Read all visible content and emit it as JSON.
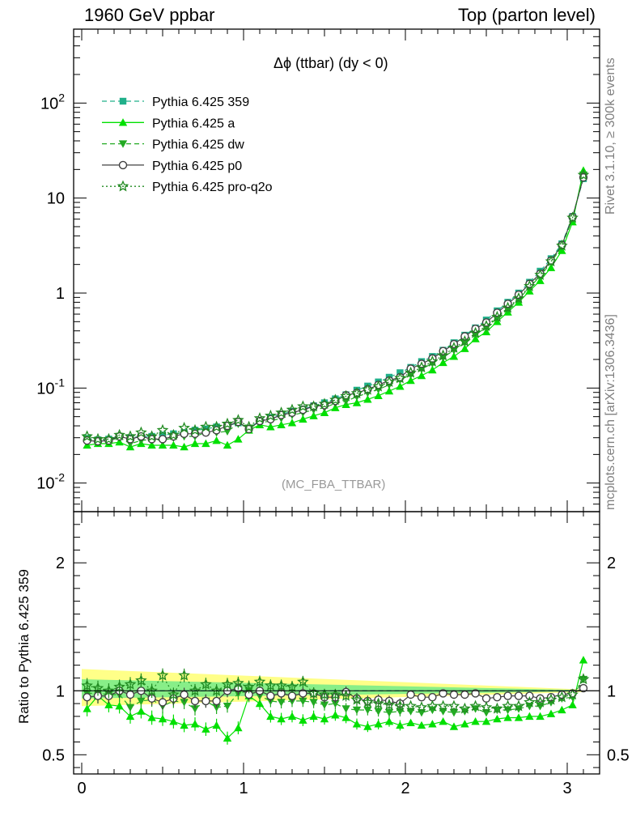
{
  "header": {
    "left": "1960 GeV ppbar",
    "right": "Top (parton level)"
  },
  "side": {
    "top": "Rivet 3.1.10, ≥ 300k events",
    "bottom": "mcplots.cern.ch [arXiv:1306.3436]"
  },
  "chart_data": [
    {
      "type": "line",
      "title": "Δϕ (ttbar) (dy < 0)",
      "annotation": "(MC_FBA_TTBAR)",
      "yscale": "log",
      "xlim": [
        -0.05,
        3.2
      ],
      "ylim": [
        0.005,
        600
      ],
      "y_ticks": [
        {
          "value": 0.01,
          "label": "10^-2"
        },
        {
          "value": 0.1,
          "label": "10^-1"
        },
        {
          "value": 1,
          "label": "1"
        },
        {
          "value": 10,
          "label": "10"
        },
        {
          "value": 100,
          "label": "10^2"
        }
      ],
      "legend_position": "top-left",
      "x": [
        0.033,
        0.1,
        0.167,
        0.233,
        0.3,
        0.367,
        0.433,
        0.5,
        0.567,
        0.633,
        0.7,
        0.767,
        0.833,
        0.9,
        0.967,
        1.033,
        1.1,
        1.167,
        1.233,
        1.3,
        1.367,
        1.433,
        1.5,
        1.567,
        1.633,
        1.7,
        1.767,
        1.833,
        1.9,
        1.967,
        2.033,
        2.1,
        2.167,
        2.233,
        2.3,
        2.367,
        2.433,
        2.5,
        2.567,
        2.633,
        2.7,
        2.767,
        2.833,
        2.9,
        2.967,
        3.033,
        3.1
      ],
      "series": [
        {
          "name": "Pythia 6.425 359",
          "color": "#20b08a",
          "dash": "6,4",
          "marker": "square",
          "values": [
            0.0295,
            0.0285,
            0.029,
            0.031,
            0.03,
            0.031,
            0.031,
            0.032,
            0.033,
            0.034,
            0.036,
            0.037,
            0.039,
            0.04,
            0.043,
            0.038,
            0.045,
            0.049,
            0.053,
            0.057,
            0.06,
            0.065,
            0.07,
            0.077,
            0.085,
            0.095,
            0.105,
            0.116,
            0.13,
            0.145,
            0.165,
            0.19,
            0.215,
            0.25,
            0.3,
            0.36,
            0.43,
            0.52,
            0.65,
            0.8,
            1.0,
            1.3,
            1.7,
            2.3,
            3.3,
            6.4,
            16.0
          ]
        },
        {
          "name": "Pythia 6.425 a",
          "color": "#00e000",
          "dash": "",
          "marker": "triangle-up",
          "values": [
            0.025,
            0.026,
            0.026,
            0.027,
            0.024,
            0.026,
            0.025,
            0.025,
            0.025,
            0.024,
            0.026,
            0.026,
            0.028,
            0.025,
            0.029,
            0.036,
            0.041,
            0.039,
            0.041,
            0.043,
            0.047,
            0.051,
            0.055,
            0.062,
            0.067,
            0.07,
            0.076,
            0.083,
            0.093,
            0.104,
            0.12,
            0.135,
            0.155,
            0.185,
            0.215,
            0.26,
            0.33,
            0.39,
            0.5,
            0.63,
            0.8,
            1.05,
            1.35,
            1.85,
            2.8,
            5.6,
            19.5
          ]
        },
        {
          "name": "Pythia 6.425 dw",
          "color": "#22aa22",
          "dash": "6,4",
          "marker": "triangle-down",
          "values": [
            0.029,
            0.028,
            0.028,
            0.03,
            0.026,
            0.028,
            0.029,
            0.028,
            0.03,
            0.031,
            0.031,
            0.034,
            0.034,
            0.035,
            0.042,
            0.038,
            0.043,
            0.045,
            0.048,
            0.052,
            0.055,
            0.059,
            0.062,
            0.069,
            0.073,
            0.081,
            0.089,
            0.097,
            0.108,
            0.122,
            0.138,
            0.158,
            0.182,
            0.21,
            0.25,
            0.3,
            0.37,
            0.43,
            0.55,
            0.68,
            0.86,
            1.15,
            1.5,
            2.1,
            3.1,
            6.1,
            17.5
          ]
        },
        {
          "name": "Pythia 6.425 p0",
          "color": "#404040",
          "dash": "",
          "marker": "circle-open",
          "values": [
            0.028,
            0.0275,
            0.028,
            0.031,
            0.029,
            0.031,
            0.029,
            0.029,
            0.031,
            0.033,
            0.033,
            0.034,
            0.036,
            0.04,
            0.044,
            0.037,
            0.045,
            0.047,
            0.052,
            0.055,
            0.059,
            0.064,
            0.066,
            0.073,
            0.084,
            0.089,
            0.097,
            0.108,
            0.12,
            0.13,
            0.16,
            0.18,
            0.205,
            0.245,
            0.29,
            0.35,
            0.42,
            0.49,
            0.62,
            0.77,
            0.96,
            1.25,
            1.6,
            2.2,
            3.2,
            6.3,
            16.5
          ]
        },
        {
          "name": "Pythia 6.425 pro-q2o",
          "color": "#228b22",
          "dash": "2,3",
          "marker": "star-open",
          "values": [
            0.031,
            0.029,
            0.029,
            0.032,
            0.031,
            0.034,
            0.031,
            0.036,
            0.032,
            0.038,
            0.036,
            0.039,
            0.039,
            0.042,
            0.046,
            0.039,
            0.048,
            0.051,
            0.055,
            0.059,
            0.064,
            0.064,
            0.068,
            0.075,
            0.082,
            0.088,
            0.096,
            0.104,
            0.116,
            0.127,
            0.145,
            0.165,
            0.19,
            0.22,
            0.265,
            0.31,
            0.38,
            0.45,
            0.56,
            0.7,
            0.88,
            1.18,
            1.55,
            2.15,
            3.15,
            6.2,
            17.5
          ]
        }
      ]
    },
    {
      "type": "line",
      "ylabel": "Ratio to Pythia 6.425 359",
      "xlim": [
        -0.05,
        3.2
      ],
      "ylim": [
        0.35,
        2.4
      ],
      "x_ticks": [
        {
          "value": 0,
          "label": "0"
        },
        {
          "value": 1,
          "label": "1"
        },
        {
          "value": 2,
          "label": "2"
        },
        {
          "value": 3,
          "label": "3"
        }
      ],
      "y_ticks": [
        {
          "value": 0.5,
          "label": "0.5"
        },
        {
          "value": 1,
          "label": "1"
        },
        {
          "value": 2,
          "label": "2"
        }
      ],
      "band_outer": {
        "color": "#ffff88",
        "x": [
          0,
          3.1
        ],
        "lo": [
          0.88,
          0.99
        ],
        "hi": [
          1.17,
          1.01
        ]
      },
      "band_inner": {
        "color": "#88ee88",
        "x": [
          0,
          3.1
        ],
        "lo": [
          0.94,
          0.995
        ],
        "hi": [
          1.09,
          1.005
        ]
      },
      "x": [
        0.033,
        0.1,
        0.167,
        0.233,
        0.3,
        0.367,
        0.433,
        0.5,
        0.567,
        0.633,
        0.7,
        0.767,
        0.833,
        0.9,
        0.967,
        1.033,
        1.1,
        1.167,
        1.233,
        1.3,
        1.367,
        1.433,
        1.5,
        1.567,
        1.633,
        1.7,
        1.767,
        1.833,
        1.9,
        1.967,
        2.033,
        2.1,
        2.167,
        2.233,
        2.3,
        2.367,
        2.433,
        2.5,
        2.567,
        2.633,
        2.7,
        2.767,
        2.833,
        2.9,
        2.967,
        3.033,
        3.1
      ],
      "series": [
        {
          "name": "Pythia 6.425 359",
          "color": "#20b08a",
          "dash": "6,4",
          "marker": "square",
          "values": [
            1,
            1,
            1,
            1,
            1,
            1,
            1,
            1,
            1,
            1,
            1,
            1,
            1,
            1,
            1,
            1,
            1,
            1,
            1,
            1,
            1,
            1,
            1,
            1,
            1,
            1,
            1,
            1,
            1,
            1,
            1,
            1,
            1,
            1,
            1,
            1,
            1,
            1,
            1,
            1,
            1,
            1,
            1,
            1,
            1,
            1,
            1
          ]
        },
        {
          "name": "Pythia 6.425 a",
          "color": "#00e000",
          "dash": "",
          "marker": "triangle-up",
          "values": [
            0.86,
            0.96,
            0.89,
            0.88,
            0.8,
            0.84,
            0.79,
            0.78,
            0.76,
            0.73,
            0.74,
            0.7,
            0.73,
            0.63,
            0.71,
            0.96,
            0.9,
            0.8,
            0.78,
            0.8,
            0.77,
            0.8,
            0.78,
            0.81,
            0.79,
            0.74,
            0.72,
            0.74,
            0.76,
            0.73,
            0.75,
            0.73,
            0.74,
            0.76,
            0.72,
            0.74,
            0.76,
            0.76,
            0.78,
            0.79,
            0.79,
            0.8,
            0.8,
            0.82,
            0.85,
            0.89,
            1.24
          ]
        },
        {
          "name": "Pythia 6.425 dw",
          "color": "#22aa22",
          "dash": "6,4",
          "marker": "triangle-down",
          "values": [
            0.98,
            0.98,
            0.97,
            0.97,
            0.87,
            0.92,
            0.93,
            0.88,
            0.92,
            0.91,
            0.86,
            0.92,
            0.87,
            0.88,
            0.98,
            1.0,
            0.96,
            0.92,
            0.91,
            0.92,
            0.92,
            0.91,
            0.89,
            0.9,
            0.86,
            0.85,
            0.85,
            0.84,
            0.83,
            0.84,
            0.84,
            0.83,
            0.85,
            0.84,
            0.83,
            0.84,
            0.86,
            0.83,
            0.85,
            0.85,
            0.86,
            0.88,
            0.88,
            0.91,
            0.94,
            0.95,
            1.09
          ]
        },
        {
          "name": "Pythia 6.425 p0",
          "color": "#404040",
          "dash": "",
          "marker": "circle-open",
          "values": [
            0.95,
            0.96,
            0.96,
            1.0,
            0.97,
            1.0,
            0.94,
            0.91,
            0.94,
            0.97,
            0.92,
            0.92,
            0.92,
            1.0,
            1.02,
            0.97,
            1.0,
            0.96,
            0.98,
            0.96,
            0.98,
            0.98,
            0.95,
            0.95,
            0.99,
            0.94,
            0.92,
            0.93,
            0.92,
            0.9,
            0.97,
            0.95,
            0.95,
            0.98,
            0.97,
            0.97,
            0.98,
            0.94,
            0.95,
            0.96,
            0.96,
            0.96,
            0.94,
            0.95,
            0.97,
            0.98,
            1.02
          ]
        },
        {
          "name": "Pythia 6.425 pro-q2o",
          "color": "#228b22",
          "dash": "2,3",
          "marker": "star-open",
          "values": [
            1.04,
            1.02,
            1.0,
            1.03,
            1.05,
            1.08,
            1.0,
            1.12,
            0.97,
            1.12,
            1.0,
            1.05,
            1.0,
            1.05,
            1.06,
            1.03,
            1.07,
            1.04,
            1.04,
            1.03,
            1.07,
            0.98,
            0.97,
            0.97,
            0.96,
            0.93,
            0.91,
            0.9,
            0.89,
            0.88,
            0.88,
            0.87,
            0.88,
            0.88,
            0.88,
            0.86,
            0.88,
            0.87,
            0.86,
            0.88,
            0.88,
            0.91,
            0.91,
            0.93,
            0.95,
            0.97,
            1.09
          ]
        }
      ]
    }
  ]
}
